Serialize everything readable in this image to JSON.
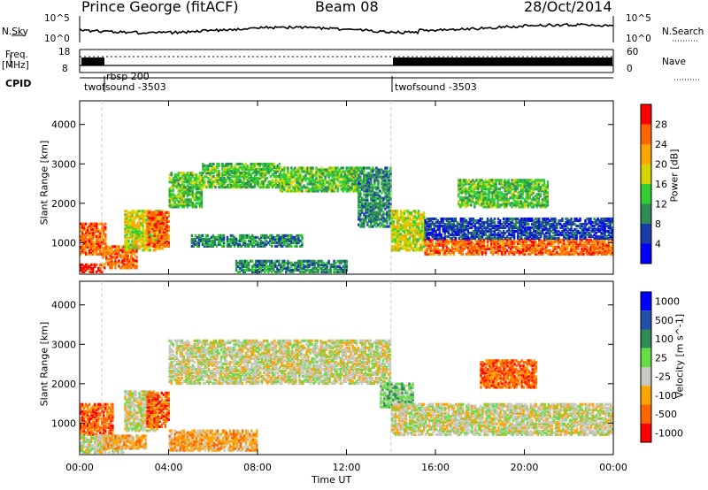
{
  "header": {
    "title": "Prince George (fitACF)",
    "beam": "Beam 08",
    "date": "28/Oct/2014"
  },
  "sky_panel": {
    "left_label": "N.Sky",
    "right_label": "N.Search",
    "left_ticks": [
      "10^5",
      "10^0"
    ],
    "right_ticks": [
      "10^5",
      "10^0"
    ]
  },
  "freq_panel": {
    "left_label_1": "Freq.",
    "left_label_2": "[MHz]",
    "left_ticks": [
      "18",
      "8"
    ],
    "right_label": "Nave",
    "right_ticks": [
      "60",
      "0"
    ]
  },
  "cpid": {
    "label": "CPID",
    "entries": [
      {
        "start_hour": 0.0,
        "text": "twofsound -3503"
      },
      {
        "start_hour": 1.0,
        "text": "rbsp 200"
      },
      {
        "start_hour": 14.0,
        "text": "twofsound -3503"
      }
    ]
  },
  "x_axis": {
    "label": "Time UT",
    "ticks": [
      "00:00",
      "04:00",
      "08:00",
      "12:00",
      "16:00",
      "20:00",
      "00:00"
    ],
    "range_hours": [
      0,
      24
    ]
  },
  "colors": {
    "power_scale": [
      "#0000ff",
      "#1a3ca8",
      "#2e8b57",
      "#32cd32",
      "#d4d400",
      "#ffa500",
      "#ff6600",
      "#ff0000"
    ],
    "velocity_scale": [
      "#0000ff",
      "#1f4fa8",
      "#2e8b57",
      "#66dd44",
      "#c8c8c0",
      "#ffa500",
      "#ff6600",
      "#ff0000"
    ],
    "ground_scatter": "#c8c8c0"
  },
  "chart_data": [
    {
      "type": "heatmap",
      "name": "power",
      "ylabel": "Slant Range [km]",
      "ylim": [
        200,
        4600
      ],
      "y_ticks": [
        "1000",
        "2000",
        "3000",
        "4000"
      ],
      "colorbar_label": "Power [dB]",
      "colorbar_ticks": [
        "4",
        "8",
        "12",
        "16",
        "20",
        "24",
        "28"
      ],
      "colorbar_range": [
        0,
        32
      ],
      "regions": [
        {
          "t": [
            0.0,
            1.2
          ],
          "r": [
            700,
            1500
          ],
          "level": 6
        },
        {
          "t": [
            0.0,
            1.0
          ],
          "r": [
            250,
            450
          ],
          "level": 7
        },
        {
          "t": [
            1.0,
            2.6
          ],
          "r": [
            350,
            900
          ],
          "level": 6
        },
        {
          "t": [
            2.0,
            3.7
          ],
          "r": [
            800,
            1800
          ],
          "level": 4
        },
        {
          "t": [
            3.0,
            4.0
          ],
          "r": [
            900,
            1800
          ],
          "level": 6
        },
        {
          "t": [
            4.0,
            5.5
          ],
          "r": [
            1900,
            2800
          ],
          "level": 3
        },
        {
          "t": [
            5.5,
            9.0
          ],
          "r": [
            2400,
            3000
          ],
          "level": 3
        },
        {
          "t": [
            9.0,
            12.5
          ],
          "r": [
            2300,
            2900
          ],
          "level": 3
        },
        {
          "t": [
            12.5,
            14.0
          ],
          "r": [
            1400,
            2900
          ],
          "level": 2
        },
        {
          "t": [
            5.0,
            10.0
          ],
          "r": [
            900,
            1200
          ],
          "level": 2
        },
        {
          "t": [
            7.0,
            12.0
          ],
          "r": [
            250,
            550
          ],
          "level": 2
        },
        {
          "t": [
            14.0,
            15.5
          ],
          "r": [
            800,
            1800
          ],
          "level": 4
        },
        {
          "t": [
            15.5,
            24.0
          ],
          "r": [
            700,
            1100
          ],
          "level": 6
        },
        {
          "t": [
            15.5,
            24.0
          ],
          "r": [
            1100,
            1600
          ],
          "level": 1
        },
        {
          "t": [
            17.0,
            21.0
          ],
          "r": [
            1900,
            2600
          ],
          "level": 3
        }
      ]
    },
    {
      "type": "heatmap",
      "name": "velocity",
      "ylabel": "Slant Range [km]",
      "ylim": [
        200,
        4600
      ],
      "y_ticks": [
        "1000",
        "2000",
        "3000",
        "4000"
      ],
      "colorbar_label": "Velocity [m s^-1]",
      "colorbar_ticks": [
        "1000",
        "500",
        "100",
        "25",
        "-25",
        "-100",
        "-500",
        "-1000"
      ],
      "regions": [
        {
          "t": [
            0.0,
            1.5
          ],
          "r": [
            700,
            1500
          ],
          "level": 6
        },
        {
          "t": [
            0.0,
            2.0
          ],
          "r": [
            250,
            700
          ],
          "level": 4
        },
        {
          "t": [
            1.0,
            3.0
          ],
          "r": [
            350,
            700
          ],
          "level": 5
        },
        {
          "t": [
            2.0,
            3.5
          ],
          "r": [
            800,
            1800
          ],
          "level": 4
        },
        {
          "t": [
            3.0,
            4.0
          ],
          "r": [
            900,
            1800
          ],
          "level": 6
        },
        {
          "t": [
            4.0,
            14.0
          ],
          "r": [
            2000,
            3100
          ],
          "level": 4
        },
        {
          "t": [
            4.0,
            8.0
          ],
          "r": [
            300,
            800
          ],
          "level": 5
        },
        {
          "t": [
            13.5,
            15.0
          ],
          "r": [
            1400,
            2000
          ],
          "level": 3
        },
        {
          "t": [
            14.0,
            24.0
          ],
          "r": [
            700,
            1500
          ],
          "level": 4
        },
        {
          "t": [
            18.0,
            20.5
          ],
          "r": [
            1900,
            2600
          ],
          "level": 6
        }
      ]
    }
  ]
}
